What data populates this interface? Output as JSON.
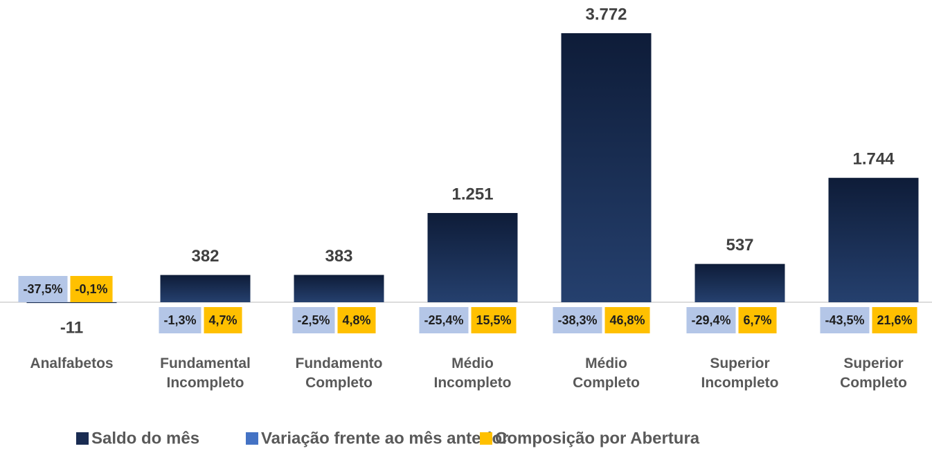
{
  "chart_data": {
    "type": "bar",
    "categories": [
      "Analfabetos",
      "Fundamental\nIncompleto",
      "Fundamento\nCompleto",
      "Médio\nIncompleto",
      "Médio\nCompleto",
      "Superior\nIncompleto",
      "Superior\nCompleto"
    ],
    "series": [
      {
        "name": "Saldo do mês",
        "color": "#1a2c52",
        "values": [
          -11,
          382,
          383,
          1251,
          3772,
          537,
          1744
        ],
        "value_labels": [
          "-11",
          "382",
          "383",
          "1.251",
          "3.772",
          "537",
          "1.744"
        ]
      },
      {
        "name": "Variação frente ao mês anterior",
        "color": "#4472c4",
        "box_color": "#b4c6e7",
        "values": [
          -37.5,
          -1.3,
          -2.5,
          -25.4,
          -38.3,
          -29.4,
          -43.5
        ],
        "value_labels": [
          "-37,5%",
          "-1,3%",
          "-2,5%",
          "-25,4%",
          "-38,3%",
          "-29,4%",
          "-43,5%"
        ]
      },
      {
        "name": "Composição por Abertura",
        "color": "#ffc000",
        "box_color": "#ffc000",
        "values": [
          -0.1,
          4.7,
          4.8,
          15.5,
          46.8,
          6.7,
          21.6
        ],
        "value_labels": [
          "-0,1%",
          "4,7%",
          "4,8%",
          "15,5%",
          "46,8%",
          "6,7%",
          "21,6%"
        ]
      }
    ],
    "legend": "bottom"
  }
}
